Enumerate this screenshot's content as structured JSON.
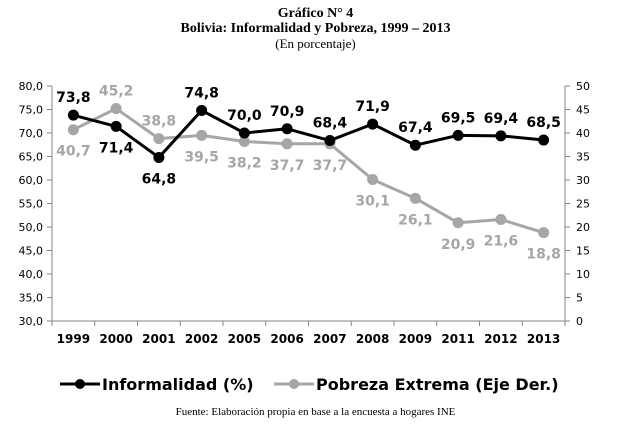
{
  "header": {
    "line1": "Gráfico N° 4",
    "line2": "Bolivia: Informalidad y Pobreza, 1999 – 2013",
    "line3": "(En porcentaje)"
  },
  "source": "Fuente: Elaboración propia en base a la encuesta a hogares INE",
  "chart_data": {
    "type": "line",
    "title": "Bolivia: Informalidad y Pobreza, 1999 – 2013",
    "subtitle": "(En porcentaje)",
    "categories": [
      "1999",
      "2000",
      "2001",
      "2002",
      "2005",
      "2006",
      "2007",
      "2008",
      "2009",
      "2011",
      "2012",
      "2013"
    ],
    "y_left": {
      "min": 30,
      "max": 80,
      "step": 5,
      "ticks": [
        "30,0",
        "35,0",
        "40,0",
        "45,0",
        "50,0",
        "55,0",
        "60,0",
        "65,0",
        "70,0",
        "75,0",
        "80,0"
      ]
    },
    "y_right": {
      "min": 0,
      "max": 50,
      "step": 5,
      "ticks": [
        "0",
        "5",
        "10",
        "15",
        "20",
        "25",
        "30",
        "35",
        "40",
        "45",
        "50"
      ]
    },
    "grid": false,
    "legend_position": "bottom",
    "series": [
      {
        "name": "Informalidad (%)",
        "axis": "left",
        "color": "#000000",
        "values": [
          73.8,
          71.4,
          64.8,
          74.8,
          70.0,
          70.9,
          68.4,
          71.9,
          67.4,
          69.5,
          69.4,
          68.5
        ],
        "labels": [
          "73,8",
          "71,4",
          "64,8",
          "74,8",
          "70,0",
          "70,9",
          "68,4",
          "71,9",
          "67,4",
          "69,5",
          "69,4",
          "68,5"
        ],
        "label_pos": [
          "above",
          "below",
          "below",
          "above",
          "above",
          "above",
          "above",
          "above",
          "above",
          "above",
          "above",
          "above"
        ]
      },
      {
        "name": "Pobreza Extrema (Eje Der.)",
        "axis": "right",
        "color": "#a6a6a6",
        "values": [
          40.7,
          45.2,
          38.8,
          39.5,
          38.2,
          37.7,
          37.7,
          30.1,
          26.1,
          20.9,
          21.6,
          18.8
        ],
        "labels": [
          "40,7",
          "45,2",
          "38,8",
          "39,5",
          "38,2",
          "37,7",
          "37,7",
          "30,1",
          "26,1",
          "20,9",
          "21,6",
          "18,8"
        ],
        "label_pos": [
          "below",
          "above",
          "above",
          "below",
          "below",
          "below",
          "below",
          "below",
          "below",
          "below",
          "below",
          "below"
        ]
      }
    ]
  }
}
